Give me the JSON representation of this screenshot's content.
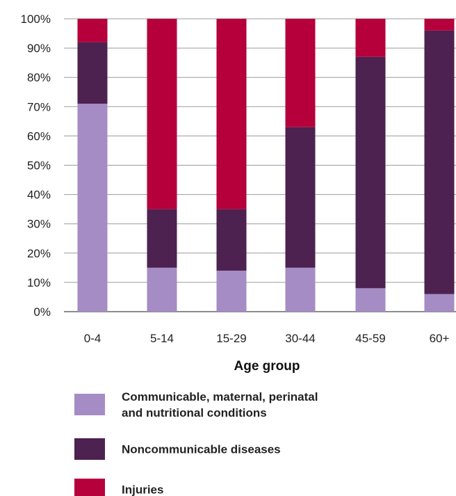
{
  "chart_data": {
    "type": "bar",
    "stacked": true,
    "categories": [
      "0-4",
      "5-14",
      "15-29",
      "30-44",
      "45-59",
      "60+"
    ],
    "series": [
      {
        "name": "Communicable, maternal, perinatal and nutritional conditions",
        "color": "#a58cc4",
        "values": [
          71,
          15,
          14,
          15,
          8,
          6
        ]
      },
      {
        "name": "Noncommunicable diseases",
        "color": "#4d2150",
        "values": [
          21,
          20,
          21,
          48,
          79,
          90
        ]
      },
      {
        "name": "Injuries",
        "color": "#b5003b",
        "values": [
          8,
          65,
          65,
          37,
          13,
          4
        ]
      }
    ],
    "xlabel": "Age group",
    "ylabel": "",
    "ylim": [
      0,
      100
    ],
    "yticks": [
      "0%",
      "10%",
      "20%",
      "30%",
      "40%",
      "50%",
      "60%",
      "70%",
      "80%",
      "90%",
      "100%"
    ],
    "grid": true,
    "legend": {
      "placement": "bottom",
      "entries": [
        {
          "lines": [
            "Communicable, maternal, perinatal",
            "and nutritional conditions"
          ]
        },
        {
          "lines": [
            "Noncommunicable diseases"
          ]
        },
        {
          "lines": [
            "Injuries"
          ]
        }
      ]
    }
  }
}
